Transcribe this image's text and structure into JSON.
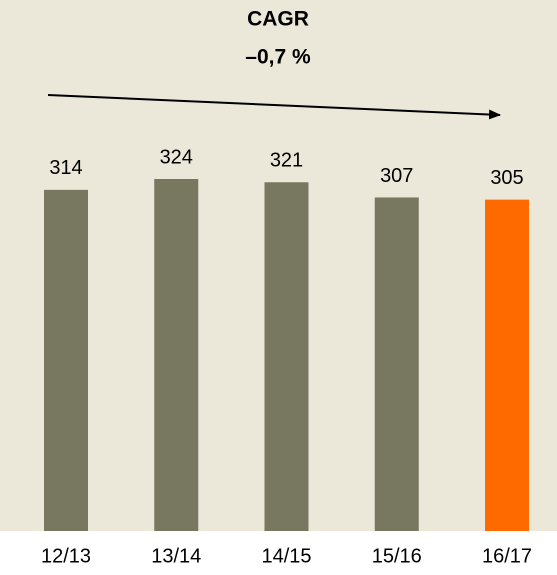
{
  "chart_data": {
    "type": "bar",
    "annotations": [
      "CAGR",
      "–0,7 %"
    ],
    "categories": [
      "12/13",
      "13/14",
      "14/15",
      "15/16",
      "16/17"
    ],
    "values": [
      314,
      324,
      321,
      307,
      305
    ],
    "colors": [
      "#787860",
      "#787860",
      "#787860",
      "#787860",
      "#ff6a00"
    ]
  }
}
